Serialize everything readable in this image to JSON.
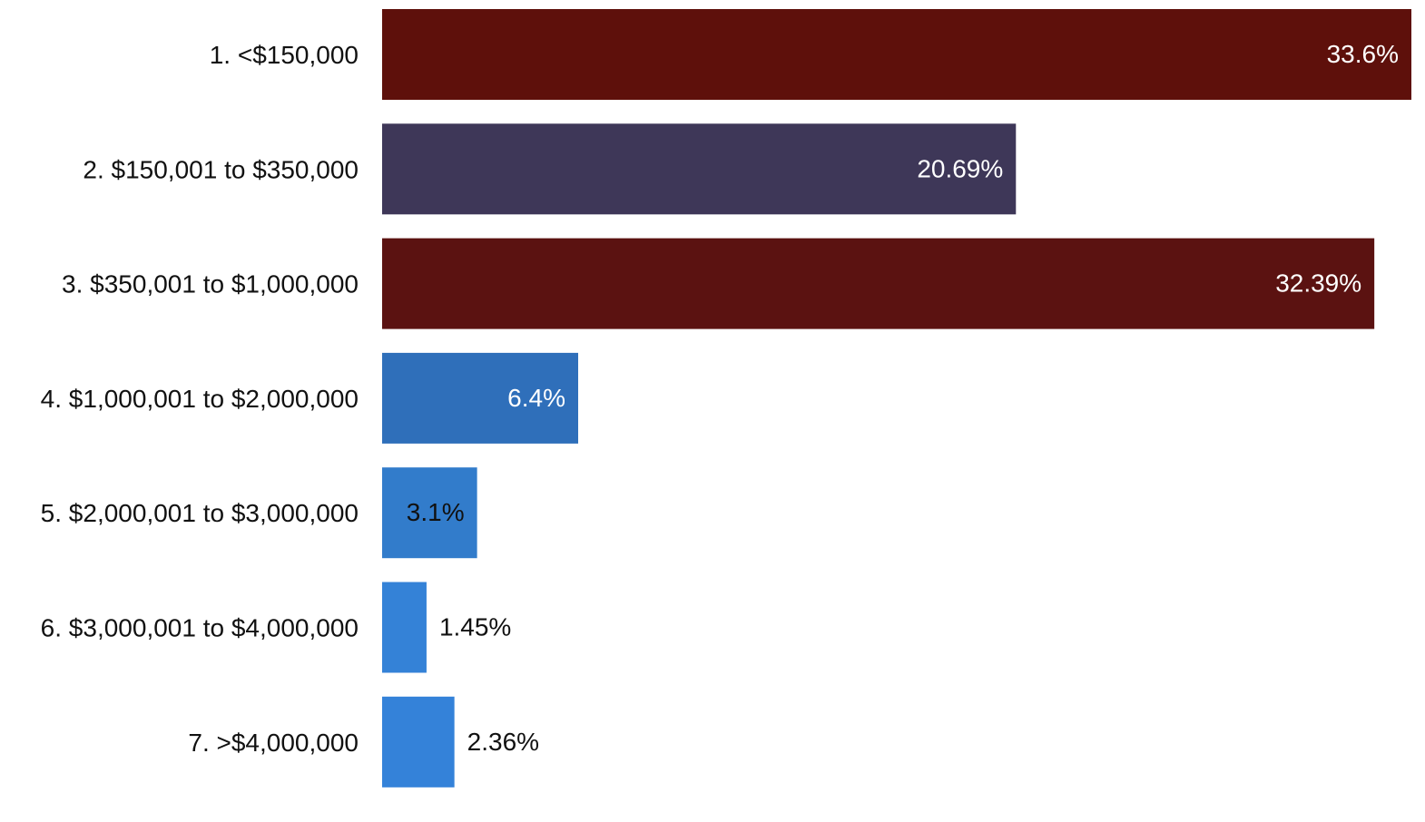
{
  "chart_data": {
    "type": "bar",
    "orientation": "horizontal",
    "categories": [
      "1. <$150,000",
      "2. $150,001 to $350,000",
      "3. $350,001 to $1,000,000",
      "4. $1,000,001 to $2,000,000",
      "5. $2,000,001 to $3,000,000",
      "6. $3,000,001 to $4,000,000",
      "7. >$4,000,000"
    ],
    "values": [
      33.6,
      20.69,
      32.39,
      6.4,
      3.1,
      1.45,
      2.36
    ],
    "value_labels": [
      "33.6%",
      "20.69%",
      "32.39%",
      "6.4%",
      "3.1%",
      "1.45%",
      "2.36%"
    ],
    "colors": [
      "#5e100b",
      "#3e3758",
      "#5b1211",
      "#2f6fba",
      "#327ccb",
      "#3482d7",
      "#3482d9"
    ],
    "label_colors": [
      "#ffffff",
      "#ffffff",
      "#ffffff",
      "#ffffff",
      "#111111",
      "#111111",
      "#111111"
    ],
    "xlim": [
      0,
      33.6
    ],
    "grid": false,
    "legend": "none"
  }
}
